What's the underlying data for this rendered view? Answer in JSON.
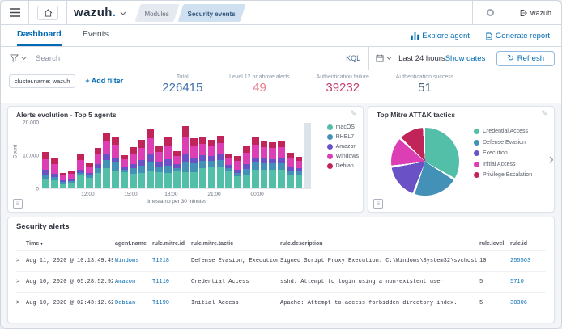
{
  "header": {
    "logo": "wazuh",
    "logo_dot": ".",
    "breadcrumbs": [
      {
        "label": "Modules"
      },
      {
        "label": "Security events"
      }
    ],
    "user": "wazuh"
  },
  "tabs": [
    {
      "label": "Dashboard"
    },
    {
      "label": "Events"
    }
  ],
  "actions": {
    "explore_agent": "Explore agent",
    "generate_report": "Generate report"
  },
  "search": {
    "placeholder": "Search",
    "kql": "KQL",
    "time_range": "Last 24 hours",
    "show_dates": "Show dates",
    "refresh": "Refresh",
    "refresh_icon": "↻"
  },
  "filters": {
    "pill": "cluster.name: wazuh",
    "add_filter": "+ Add filter"
  },
  "stats": [
    {
      "label": "Total",
      "value": "226415",
      "color": "#3f73ad"
    },
    {
      "label": "Level 12 or above alerts",
      "value": "49",
      "color": "#e8808d"
    },
    {
      "label": "Authentication failure",
      "value": "39232",
      "color": "#c13e73"
    },
    {
      "label": "Authentication success",
      "value": "51",
      "color": "#4d6276"
    }
  ],
  "chart_data": [
    {
      "type": "bar",
      "stacked": true,
      "title": "Alerts evolution - Top 5 agents",
      "xlabel": "timestamp per 30 minutes",
      "ylabel": "Count",
      "ylim": [
        0,
        20000
      ],
      "yticks": [
        {
          "label": "20,000",
          "pct": 0
        },
        {
          "label": "10,000",
          "pct": 50
        },
        {
          "label": "0",
          "pct": 100
        }
      ],
      "xticks": [
        {
          "label": "12:00",
          "pct": 17
        },
        {
          "label": "15:00",
          "pct": 33
        },
        {
          "label": "18:00",
          "pct": 48
        },
        {
          "label": "21:00",
          "pct": 64
        },
        {
          "label": "00:00",
          "pct": 80
        }
      ],
      "partial_bucket": true,
      "partial_bucket_color": "#dde3ea",
      "series": [
        {
          "name": "macOS",
          "color": "#54BFA9",
          "values": [
            3000,
            2400,
            1300,
            1800,
            3900,
            3300,
            4600,
            6200,
            5200,
            5000,
            4500,
            4800,
            5400,
            5000,
            4700,
            5300,
            4900,
            5000,
            6300,
            6500,
            6700,
            5400,
            3600,
            4300,
            5600,
            5700,
            5800,
            5600,
            4200,
            4000
          ]
        },
        {
          "name": "RHEL7",
          "color": "#4391B7",
          "values": [
            1200,
            1000,
            600,
            500,
            900,
            700,
            1500,
            2400,
            2600,
            800,
            1700,
            2200,
            2800,
            1500,
            2300,
            1000,
            3100,
            2700,
            2200,
            1900,
            2000,
            900,
            1100,
            1600,
            2200,
            1900,
            1800,
            2000,
            1300,
            1100
          ]
        },
        {
          "name": "Amazon",
          "color": "#6A51C6",
          "values": [
            1400,
            1100,
            700,
            600,
            1000,
            700,
            1300,
            1800,
            1700,
            900,
            1300,
            1600,
            2200,
            1400,
            1800,
            1100,
            2400,
            1700,
            1700,
            1500,
            1600,
            900,
            1000,
            1400,
            1700,
            1500,
            1400,
            1600,
            1200,
            1000
          ]
        },
        {
          "name": "Windows",
          "color": "#DB3FB3",
          "values": [
            3400,
            3000,
            1400,
            1500,
            2800,
            2000,
            3000,
            4000,
            3900,
            2300,
            3000,
            3800,
            4800,
            3300,
            4100,
            2500,
            5200,
            3800,
            3500,
            3200,
            3600,
            2100,
            2700,
            3500,
            3800,
            3400,
            3300,
            3500,
            2800,
            2300
          ]
        },
        {
          "name": "Debian",
          "color": "#C02459",
          "values": [
            2000,
            1700,
            800,
            800,
            1800,
            1000,
            2000,
            2400,
            2400,
            1200,
            2000,
            2400,
            3000,
            1900,
            2700,
            1400,
            3400,
            2200,
            2000,
            1800,
            2100,
            1100,
            1400,
            2100,
            2200,
            2000,
            1900,
            2000,
            1500,
            1300
          ]
        }
      ],
      "legend_position": "right"
    },
    {
      "type": "pie",
      "title": "Top Mitre ATT&K tactics",
      "legend_position": "right",
      "slices": [
        {
          "label": "Credential Access",
          "value": 35,
          "color": "#54BFA9"
        },
        {
          "label": "Defense Evasion",
          "value": 22,
          "color": "#4391B7"
        },
        {
          "label": "Execution",
          "value": 17,
          "color": "#6A51C6"
        },
        {
          "label": "Initial Access",
          "value": 14,
          "color": "#DB3FB3"
        },
        {
          "label": "Privilege Escalation",
          "value": 12,
          "color": "#C02459"
        }
      ]
    }
  ],
  "alerts_table": {
    "title": "Security alerts",
    "columns": [
      "Time",
      "agent.name",
      "rule.mitre.id",
      "rule.mitre.tactic",
      "rule.description",
      "rule.level",
      "rule.id"
    ],
    "sort_arrow": "▾",
    "rows": [
      {
        "time": "Aug 11, 2020 @ 10:13:49.493",
        "agent": "Windows",
        "mitre_id": "T1218",
        "tactic": "Defense Evasion, Execution",
        "description": "Signed Script Proxy Execution: C:\\Windows\\System32\\svchost.exe",
        "level": "10",
        "id": "255563"
      },
      {
        "time": "Aug 10, 2020 @ 05:28:52.926",
        "agent": "Amazon",
        "mitre_id": "T1110",
        "tactic": "Credential Access",
        "description": "sshd: Attempt to login using a non-existent user",
        "level": "5",
        "id": "5710"
      },
      {
        "time": "Aug 10, 2020 @ 02:43:12.625",
        "agent": "Debian",
        "mitre_id": "T1190",
        "tactic": "Initial Access",
        "description": "Apache: Attempt to access forbidden directory index.",
        "level": "5",
        "id": "30306"
      }
    ]
  }
}
